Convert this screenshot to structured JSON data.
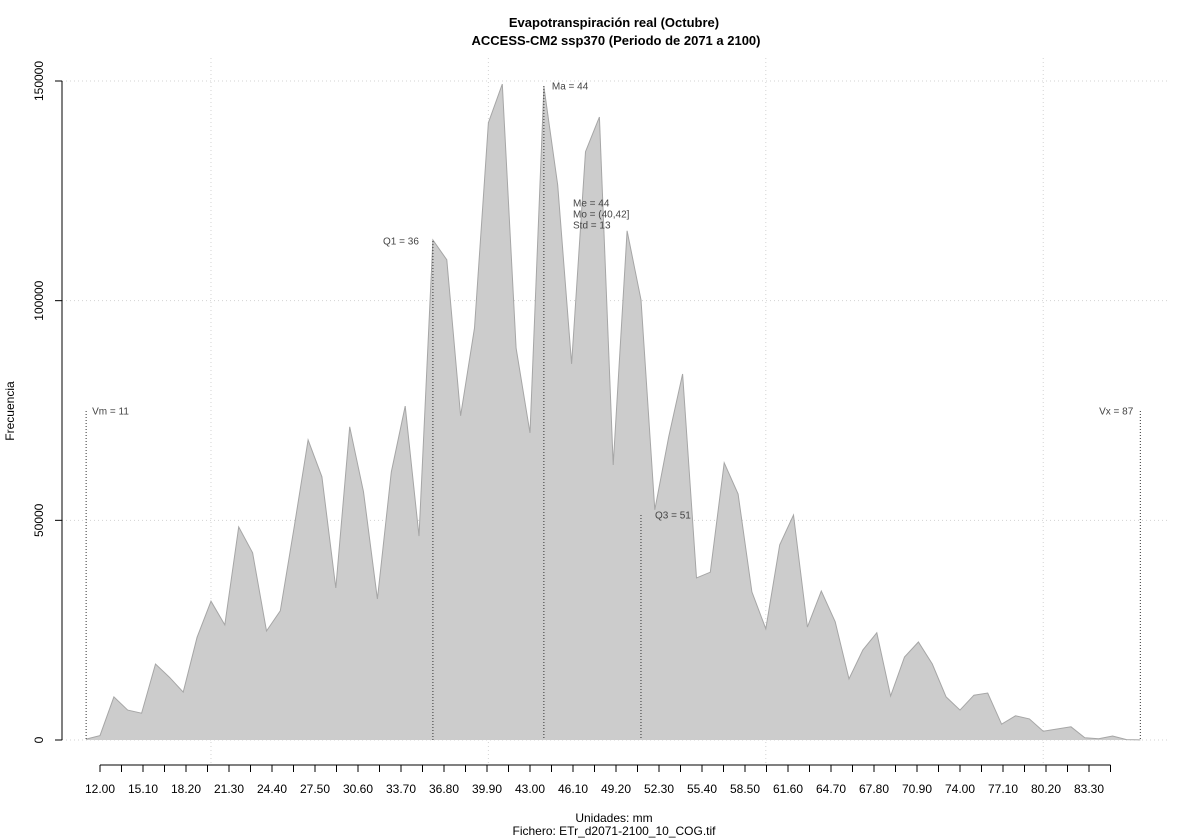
{
  "chart_data": {
    "type": "area",
    "title": "Evapotranspiración real (Octubre)",
    "subtitle": "ACCESS-CM2 ssp370 (Periodo de 2071 a 2100)",
    "xlabel": "Unidades: mm",
    "caption": "Fichero: ETr_d2071-2100_10_COG.tif",
    "ylabel": "Frecuencia",
    "xlim": [
      11,
      87
    ],
    "ylim": [
      0,
      150000
    ],
    "grid": true,
    "fill_color": "#cccccc",
    "line_color": "#a6a6a6",
    "x_tick_labels": [
      "12.00",
      "15.10",
      "18.20",
      "21.30",
      "24.40",
      "27.50",
      "30.60",
      "33.70",
      "36.80",
      "39.90",
      "43.00",
      "46.10",
      "49.20",
      "52.30",
      "55.40",
      "58.50",
      "61.60",
      "64.70",
      "67.80",
      "70.90",
      "74.00",
      "77.10",
      "80.20",
      "83.30"
    ],
    "y_ticks": [
      0,
      50000,
      100000,
      150000
    ],
    "y_tick_labels": [
      "0",
      "50000",
      "100000",
      "150000"
    ],
    "x": [
      11,
      12,
      13,
      14,
      15,
      16,
      17,
      18,
      19,
      20,
      21,
      22,
      23,
      24,
      25,
      26,
      27,
      28,
      29,
      30,
      31,
      32,
      33,
      34,
      35,
      36,
      37,
      38,
      39,
      40,
      41,
      42,
      43,
      44,
      45,
      46,
      47,
      48,
      49,
      50,
      51,
      52,
      53,
      54,
      55,
      56,
      57,
      58,
      59,
      60,
      61,
      62,
      63,
      64,
      65,
      66,
      67,
      68,
      69,
      70,
      71,
      72,
      73,
      74,
      75,
      76,
      77,
      78,
      79,
      80,
      81,
      82,
      83,
      84,
      85,
      86,
      87
    ],
    "values": [
      200,
      1000,
      9800,
      6800,
      6100,
      17300,
      14300,
      10900,
      23400,
      31600,
      26200,
      48500,
      42600,
      24800,
      29400,
      48500,
      68300,
      59900,
      34600,
      71300,
      56500,
      32100,
      61000,
      76000,
      46400,
      113800,
      109300,
      73800,
      93800,
      140500,
      149300,
      89200,
      69900,
      148700,
      126300,
      85600,
      133900,
      141800,
      62600,
      115900,
      100200,
      52400,
      69000,
      83300,
      36900,
      38200,
      63100,
      56000,
      33700,
      25300,
      44400,
      51200,
      25700,
      33900,
      26900,
      13900,
      20500,
      24400,
      10000,
      18900,
      22300,
      17300,
      9800,
      6800,
      10200,
      10700,
      3600,
      5500,
      4800,
      2000,
      2500,
      3000,
      500,
      300,
      900,
      100,
      20
    ],
    "annotations": [
      {
        "label": "Vm = 11",
        "x": 11
      },
      {
        "label": "Q1 = 36",
        "x": 36
      },
      {
        "label": "Ma = 44",
        "x": 44
      },
      {
        "label": "Q3 = 51",
        "x": 51
      },
      {
        "label": "Vx = 87",
        "x": 87
      }
    ],
    "stats": [
      "Me = 44",
      "Mo = (40,42]",
      "Std = 13"
    ]
  }
}
